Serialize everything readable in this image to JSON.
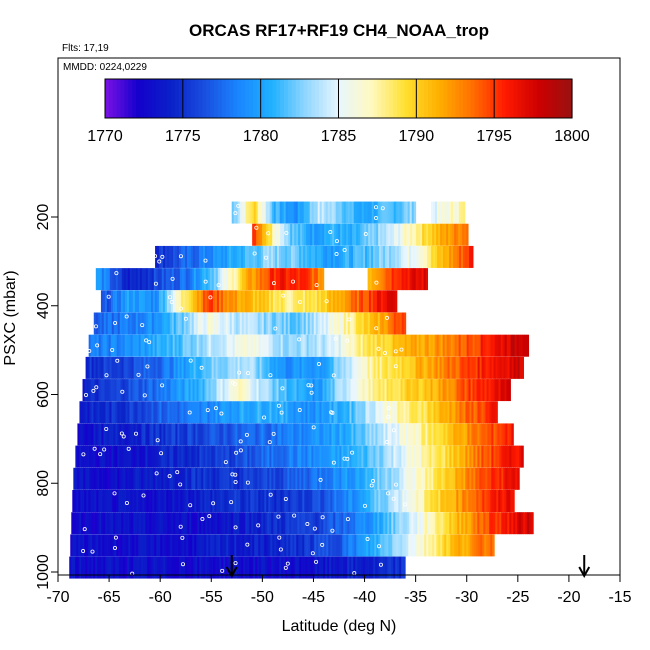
{
  "chart_data": {
    "type": "heatmap",
    "title": "ORCAS RF17+RF19 CH4_NOAA_trop",
    "flights_note": "Flts: 17,19",
    "date_note": "MMDD: 0224,0229",
    "xlabel": "Latitude (deg N)",
    "ylabel": "PSXC (mbar)",
    "xlim": [
      -70,
      -15
    ],
    "ylim": [
      1000,
      100
    ],
    "x_ticks": [
      -70,
      -65,
      -60,
      -55,
      -50,
      -45,
      -40,
      -35,
      -30,
      -25,
      -20,
      -15
    ],
    "y_ticks": [
      200,
      400,
      600,
      800,
      1000
    ],
    "colorbar": {
      "range": [
        1770,
        1800
      ],
      "ticks": [
        1770,
        1775,
        1780,
        1785,
        1790,
        1795,
        1800
      ],
      "colors": [
        "#7b12e6",
        "#1400cc",
        "#0a22c8",
        "#1a4fe0",
        "#1a86ff",
        "#20b0ff",
        "#8fd6ff",
        "#e8f6ff",
        "#fff9c0",
        "#ffe030",
        "#ffb000",
        "#ff7000",
        "#ff1a00",
        "#cc0000",
        "#991111"
      ]
    },
    "arrows_lat": [
      -53,
      -18.5
    ],
    "rows": [
      {
        "p": 190,
        "lat_min": -53,
        "lat_max": -35,
        "lat_min2": -33.5,
        "lat_max2": -30.2,
        "profile": [
          1782,
          1790,
          1781,
          1779,
          1784,
          1783,
          1780,
          1781,
          1782,
          1784,
          1786,
          1788
        ]
      },
      {
        "p": 240,
        "lat_min": -51,
        "lat_max": -30,
        "profile": [
          1796,
          1788,
          1782,
          1780,
          1781,
          1780,
          1782,
          1784,
          1787,
          1790,
          1792,
          1794
        ]
      },
      {
        "p": 290,
        "lat_min": -60.5,
        "lat_max": -29.5,
        "profile": [
          1775,
          1777,
          1779,
          1781,
          1783,
          1782,
          1780,
          1781,
          1783,
          1786,
          1791,
          1796
        ]
      },
      {
        "p": 340,
        "lat_min": -66.3,
        "lat_max": -34,
        "gap": [
          -44,
          -39.7
        ],
        "profile": [
          1780,
          1774,
          1776,
          1778,
          1783,
          1791,
          1796,
          1795,
          1790,
          1791,
          1796,
          1797
        ]
      },
      {
        "p": 390,
        "lat_min": -65.8,
        "lat_max": -37,
        "profile": [
          1776,
          1780,
          1779,
          1788,
          1795,
          1792,
          1790,
          1788,
          1789,
          1792,
          1795,
          1798
        ]
      },
      {
        "p": 440,
        "lat_min": -66.5,
        "lat_max": -36,
        "profile": [
          1777,
          1778,
          1779,
          1782,
          1786,
          1784,
          1783,
          1782,
          1784,
          1788,
          1791,
          1796
        ]
      },
      {
        "p": 490,
        "lat_min": -67,
        "lat_max": -24,
        "profile": [
          1778,
          1779,
          1781,
          1784,
          1786,
          1783,
          1784,
          1789,
          1791,
          1793,
          1796,
          1799
        ]
      },
      {
        "p": 540,
        "lat_min": -67.3,
        "lat_max": -24.5,
        "profile": [
          1775,
          1776,
          1778,
          1782,
          1784,
          1779,
          1780,
          1787,
          1790,
          1793,
          1796,
          1798
        ]
      },
      {
        "p": 590,
        "lat_min": -67.6,
        "lat_max": -25.8,
        "profile": [
          1774,
          1776,
          1778,
          1781,
          1787,
          1782,
          1779,
          1786,
          1789,
          1791,
          1795,
          1797
        ]
      },
      {
        "p": 640,
        "lat_min": -67.9,
        "lat_max": -27,
        "profile": [
          1774,
          1775,
          1777,
          1778,
          1780,
          1781,
          1779,
          1781,
          1786,
          1789,
          1793,
          1796
        ]
      },
      {
        "p": 690,
        "lat_min": -68.1,
        "lat_max": -25.5,
        "profile": [
          1773,
          1774,
          1775,
          1776,
          1777,
          1778,
          1779,
          1781,
          1785,
          1789,
          1793,
          1796
        ]
      },
      {
        "p": 740,
        "lat_min": -68.3,
        "lat_max": -24.5,
        "profile": [
          1773,
          1773,
          1774,
          1775,
          1776,
          1778,
          1779,
          1781,
          1785,
          1789,
          1794,
          1797
        ]
      },
      {
        "p": 790,
        "lat_min": -68.5,
        "lat_max": -25,
        "profile": [
          1773,
          1773,
          1774,
          1775,
          1775,
          1776,
          1778,
          1780,
          1784,
          1789,
          1794,
          1797
        ]
      },
      {
        "p": 840,
        "lat_min": -68.6,
        "lat_max": -25.5,
        "profile": [
          1773,
          1773,
          1773,
          1774,
          1775,
          1775,
          1776,
          1779,
          1784,
          1789,
          1794,
          1797
        ]
      },
      {
        "p": 890,
        "lat_min": -68.7,
        "lat_max": -23.5,
        "profile": [
          1773,
          1773,
          1773,
          1773,
          1774,
          1775,
          1776,
          1779,
          1784,
          1790,
          1795,
          1798
        ]
      },
      {
        "p": 940,
        "lat_min": -68.8,
        "lat_max": -27.5,
        "profile": [
          1773,
          1773,
          1773,
          1773,
          1774,
          1774,
          1775,
          1777,
          1781,
          1786,
          1791,
          1794
        ]
      },
      {
        "p": 990,
        "lat_min": -68.9,
        "lat_max": -36.2,
        "profile": [
          1773,
          1773,
          1773,
          1773,
          1773,
          1773,
          1773,
          1773,
          1773,
          1774,
          1774,
          1775
        ]
      }
    ]
  }
}
